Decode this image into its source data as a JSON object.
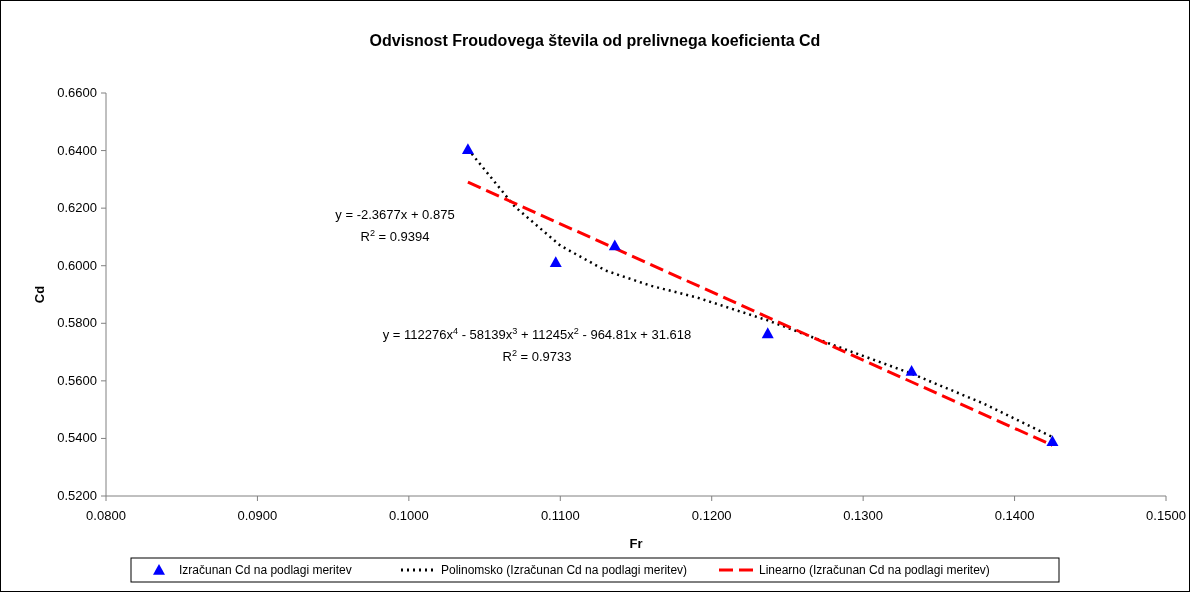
{
  "chart_data": {
    "type": "scatter",
    "title": "Odvisnost Froudovega števila od prelivnega koeficienta Cd",
    "xlabel": "Fr",
    "ylabel": "Cd",
    "xlim": [
      0.08,
      0.15
    ],
    "xticks": [
      {
        "value": 0.08,
        "label": "0.0800"
      },
      {
        "value": 0.09,
        "label": "0.0900"
      },
      {
        "value": 0.1,
        "label": "0.1000"
      },
      {
        "value": 0.11,
        "label": "0.1100"
      },
      {
        "value": 0.12,
        "label": "0.1200"
      },
      {
        "value": 0.13,
        "label": "0.1300"
      },
      {
        "value": 0.14,
        "label": "0.1400"
      },
      {
        "value": 0.15,
        "label": "0.1500"
      }
    ],
    "ylim": [
      0.52,
      0.66
    ],
    "yticks": [
      {
        "value": 0.52,
        "label": "0.5200"
      },
      {
        "value": 0.54,
        "label": "0.5400"
      },
      {
        "value": 0.56,
        "label": "0.5600"
      },
      {
        "value": 0.58,
        "label": "0.5800"
      },
      {
        "value": 0.6,
        "label": "0.6000"
      },
      {
        "value": 0.62,
        "label": "0.6200"
      },
      {
        "value": 0.64,
        "label": "0.6400"
      },
      {
        "value": 0.66,
        "label": "0.6600"
      }
    ],
    "series": [
      {
        "name": "Izračunan Cd na podlagi meritev",
        "color": "#0000ff",
        "marker": "triangle",
        "x": [
          0.1039,
          0.1097,
          0.1136,
          0.1237,
          0.1332,
          0.1425
        ],
        "values": [
          0.6405,
          0.6012,
          0.607,
          0.5765,
          0.5634,
          0.539
        ]
      },
      {
        "name": "Polinomsko (Izračunan Cd na podlagi meritev)",
        "type": "line",
        "color": "#000000",
        "line_style": "dotted",
        "marker": "none",
        "x": [
          0.1039,
          0.107,
          0.11,
          0.113,
          0.116,
          0.119,
          0.1237,
          0.128,
          0.1332,
          0.138,
          0.1425
        ],
        "values": [
          0.6405,
          0.6205,
          0.607,
          0.5983,
          0.593,
          0.589,
          0.581,
          0.5725,
          0.5625,
          0.552,
          0.5405
        ]
      },
      {
        "name": "Linearno (Izračunan Cd na podlagi meritev)",
        "type": "line",
        "color": "#ff0000",
        "line_style": "dashed",
        "marker": "none",
        "x": [
          0.1039,
          0.1425
        ],
        "values": [
          0.629,
          0.5376
        ]
      }
    ],
    "annotations": [
      "y = -2.3677x + 0.875",
      "R$^{2}$ = 0.9394",
      "y = 112276x$^{4}$ - 58139x$^{3}$ + 11245x$^{2}$ - 964.81x + 31.618",
      "R$^{2}$ = 0.9733"
    ],
    "legend": "bottom",
    "grid": false
  }
}
